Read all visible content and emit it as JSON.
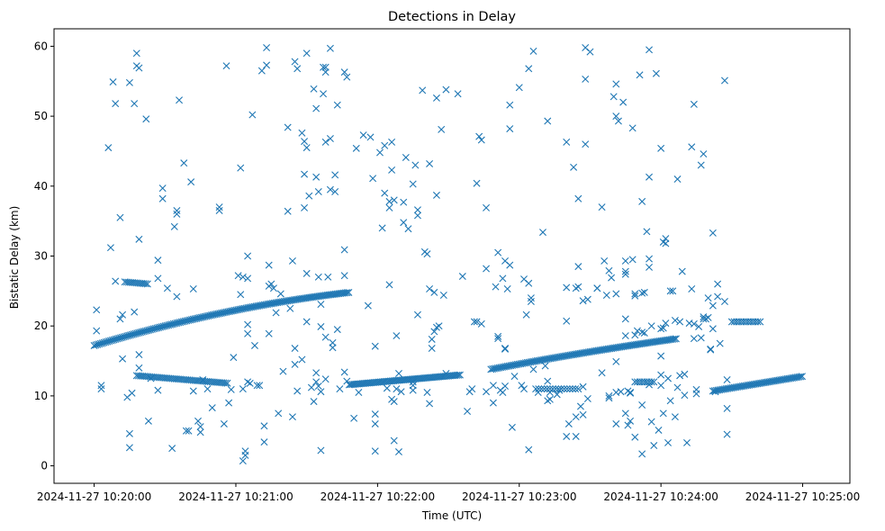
{
  "chart_data": {
    "type": "scatter",
    "title": "Detections in Delay",
    "xlabel": "Time (UTC)",
    "ylabel": "Bistatic Delay (km)",
    "marker": "x",
    "color": "#1f77b4",
    "grid": false,
    "xlim_seconds": [
      -17,
      320
    ],
    "ylim": [
      -2.5,
      62.5
    ],
    "x_ticks": [
      {
        "t": 0,
        "label": "2024-11-27 10:20:00"
      },
      {
        "t": 60,
        "label": "2024-11-27 10:21:00"
      },
      {
        "t": 120,
        "label": "2024-11-27 10:22:00"
      },
      {
        "t": 180,
        "label": "2024-11-27 10:23:00"
      },
      {
        "t": 240,
        "label": "2024-11-27 10:24:00"
      },
      {
        "t": 300,
        "label": "2024-11-27 10:25:00"
      }
    ],
    "y_ticks": [
      0,
      10,
      20,
      30,
      40,
      50,
      60
    ],
    "tracks": [
      {
        "name": "rising-track-1",
        "t_start": 0,
        "t_end": 108,
        "y_start": 17.2,
        "y_end": 24.8,
        "step": 0.7,
        "curvature": 0.45
      },
      {
        "name": "flat-track-1",
        "t_start": 108,
        "t_end": 155,
        "y_start": 11.6,
        "y_end": 13.0,
        "step": 0.7,
        "curvature": 0
      },
      {
        "name": "rising-track-2",
        "t_start": 168,
        "t_end": 247,
        "y_start": 13.8,
        "y_end": 18.2,
        "step": 0.7,
        "curvature": 0.15
      },
      {
        "name": "rising-track-3",
        "t_start": 262,
        "t_end": 300,
        "y_start": 10.7,
        "y_end": 12.8,
        "step": 0.7,
        "curvature": 0
      },
      {
        "name": "short-track-a",
        "t_start": 18,
        "t_end": 57,
        "y_start": 12.9,
        "y_end": 11.8,
        "step": 0.8,
        "curvature": 0
      },
      {
        "name": "short-track-b",
        "t_start": 13,
        "t_end": 23,
        "y_start": 26.3,
        "y_end": 26.0,
        "step": 0.8,
        "curvature": 0
      },
      {
        "name": "short-track-c",
        "t_start": 187,
        "t_end": 206,
        "y_start": 11.0,
        "y_end": 11.0,
        "step": 1.2,
        "curvature": 0
      },
      {
        "name": "short-track-d",
        "t_start": 229,
        "t_end": 237,
        "y_start": 12.0,
        "y_end": 12.0,
        "step": 1.0,
        "curvature": 0
      },
      {
        "name": "short-track-e",
        "t_start": 270,
        "t_end": 282,
        "y_start": 20.6,
        "y_end": 20.6,
        "step": 1.0,
        "curvature": 0
      }
    ],
    "points": [
      [
        1,
        22.3
      ],
      [
        1,
        19.3
      ],
      [
        3,
        11.5
      ],
      [
        3,
        11.0
      ],
      [
        6,
        45.5
      ],
      [
        7,
        31.2
      ],
      [
        8,
        54.9
      ],
      [
        9,
        51.8
      ],
      [
        9,
        26.4
      ],
      [
        11,
        21.0
      ],
      [
        11,
        35.5
      ],
      [
        12,
        21.6
      ],
      [
        12,
        15.3
      ],
      [
        14,
        9.8
      ],
      [
        15,
        54.8
      ],
      [
        15,
        2.6
      ],
      [
        15,
        4.6
      ],
      [
        16,
        10.4
      ],
      [
        17,
        51.8
      ],
      [
        17,
        22.0
      ],
      [
        18,
        59.0
      ],
      [
        18,
        57.2
      ],
      [
        19,
        56.9
      ],
      [
        19,
        32.4
      ],
      [
        19,
        14.0
      ],
      [
        19,
        15.9
      ],
      [
        22,
        49.6
      ],
      [
        23,
        6.4
      ],
      [
        24,
        12.5
      ],
      [
        27,
        29.4
      ],
      [
        27,
        26.8
      ],
      [
        27,
        10.8
      ],
      [
        29,
        39.7
      ],
      [
        29,
        38.2
      ],
      [
        31,
        25.4
      ],
      [
        33,
        2.5
      ],
      [
        34,
        34.2
      ],
      [
        35,
        24.2
      ],
      [
        35,
        36.5
      ],
      [
        35,
        36.0
      ],
      [
        36,
        52.3
      ],
      [
        38,
        43.3
      ],
      [
        39,
        5.0
      ],
      [
        40,
        5.0
      ],
      [
        41,
        40.6
      ],
      [
        42,
        25.3
      ],
      [
        42,
        10.7
      ],
      [
        44,
        6.4
      ],
      [
        45,
        4.8
      ],
      [
        45,
        5.6
      ],
      [
        46,
        12.3
      ],
      [
        48,
        11.0
      ],
      [
        50,
        8.3
      ],
      [
        53,
        37.0
      ],
      [
        53,
        36.5
      ],
      [
        55,
        6.0
      ],
      [
        56,
        57.2
      ],
      [
        57,
        9.0
      ],
      [
        58,
        10.9
      ],
      [
        59,
        15.5
      ],
      [
        61,
        27.2
      ],
      [
        62,
        42.6
      ],
      [
        62,
        24.5
      ],
      [
        63,
        27.0
      ],
      [
        63,
        11.0
      ],
      [
        63,
        0.7
      ],
      [
        64,
        1.5
      ],
      [
        64,
        2.1
      ],
      [
        65,
        20.2
      ],
      [
        65,
        30.0
      ],
      [
        65,
        26.8
      ],
      [
        65,
        18.9
      ],
      [
        65,
        12.0
      ],
      [
        66,
        11.8
      ],
      [
        67,
        50.2
      ],
      [
        68,
        17.2
      ],
      [
        69,
        11.5
      ],
      [
        70,
        11.5
      ],
      [
        71,
        56.5
      ],
      [
        72,
        5.7
      ],
      [
        72,
        3.4
      ],
      [
        73,
        59.8
      ],
      [
        73,
        57.3
      ],
      [
        74,
        25.7
      ],
      [
        74,
        18.9
      ],
      [
        74,
        28.7
      ],
      [
        75,
        26.0
      ],
      [
        76,
        25.4
      ],
      [
        77,
        21.9
      ],
      [
        78,
        7.5
      ],
      [
        79,
        24.6
      ],
      [
        80,
        13.5
      ],
      [
        82,
        48.4
      ],
      [
        82,
        36.4
      ],
      [
        83,
        22.5
      ],
      [
        84,
        7.0
      ],
      [
        84,
        29.3
      ],
      [
        85,
        16.8
      ],
      [
        85,
        14.5
      ],
      [
        85,
        57.8
      ],
      [
        86,
        56.8
      ],
      [
        86,
        10.7
      ],
      [
        88,
        47.6
      ],
      [
        88,
        15.2
      ],
      [
        89,
        46.4
      ],
      [
        89,
        41.7
      ],
      [
        89,
        36.9
      ],
      [
        90,
        59.0
      ],
      [
        90,
        45.5
      ],
      [
        90,
        27.5
      ],
      [
        90,
        20.6
      ],
      [
        91,
        38.6
      ],
      [
        92,
        11.2
      ],
      [
        93,
        53.9
      ],
      [
        93,
        9.2
      ],
      [
        94,
        41.3
      ],
      [
        94,
        51.1
      ],
      [
        94,
        13.3
      ],
      [
        94,
        12.0
      ],
      [
        95,
        11.4
      ],
      [
        95,
        39.2
      ],
      [
        95,
        27.0
      ],
      [
        96,
        23.1
      ],
      [
        96,
        19.9
      ],
      [
        96,
        2.2
      ],
      [
        96,
        10.6
      ],
      [
        97,
        57.0
      ],
      [
        97,
        53.2
      ],
      [
        98,
        56.3
      ],
      [
        98,
        12.4
      ],
      [
        98,
        57.0
      ],
      [
        98,
        46.3
      ],
      [
        98,
        18.4
      ],
      [
        99,
        27.0
      ],
      [
        100,
        59.7
      ],
      [
        100,
        46.8
      ],
      [
        100,
        39.5
      ],
      [
        101,
        16.9
      ],
      [
        101,
        17.6
      ],
      [
        102,
        39.2
      ],
      [
        102,
        41.6
      ],
      [
        103,
        51.6
      ],
      [
        103,
        19.5
      ],
      [
        104,
        11.0
      ],
      [
        106,
        30.9
      ],
      [
        106,
        27.2
      ],
      [
        106,
        56.3
      ],
      [
        106,
        13.4
      ],
      [
        107,
        55.6
      ],
      [
        107,
        12.1
      ],
      [
        110,
        6.8
      ],
      [
        111,
        45.4
      ],
      [
        112,
        10.5
      ],
      [
        114,
        47.3
      ],
      [
        116,
        22.9
      ],
      [
        117,
        47.0
      ],
      [
        118,
        41.1
      ],
      [
        119,
        17.1
      ],
      [
        119,
        7.4
      ],
      [
        119,
        6.0
      ],
      [
        119,
        2.1
      ],
      [
        121,
        44.8
      ],
      [
        122,
        34.0
      ],
      [
        123,
        45.8
      ],
      [
        123,
        39.0
      ],
      [
        124,
        11.1
      ],
      [
        125,
        25.9
      ],
      [
        125,
        37.8
      ],
      [
        125,
        36.9
      ],
      [
        126,
        42.3
      ],
      [
        126,
        46.3
      ],
      [
        126,
        9.5
      ],
      [
        127,
        9.2
      ],
      [
        127,
        38.0
      ],
      [
        127,
        3.6
      ],
      [
        128,
        18.6
      ],
      [
        128,
        11.0
      ],
      [
        129,
        13.2
      ],
      [
        129,
        2.0
      ],
      [
        130,
        10.6
      ],
      [
        131,
        37.7
      ],
      [
        131,
        34.8
      ],
      [
        132,
        44.1
      ],
      [
        133,
        33.9
      ],
      [
        135,
        40.3
      ],
      [
        135,
        11.5
      ],
      [
        135,
        10.8
      ],
      [
        135,
        12.0
      ],
      [
        136,
        43.0
      ],
      [
        137,
        21.6
      ],
      [
        137,
        36.6
      ],
      [
        137,
        35.8
      ],
      [
        139,
        53.7
      ],
      [
        140,
        30.6
      ],
      [
        141,
        30.3
      ],
      [
        141,
        10.5
      ],
      [
        142,
        25.3
      ],
      [
        142,
        43.2
      ],
      [
        142,
        8.9
      ],
      [
        143,
        18.1
      ],
      [
        143,
        16.8
      ],
      [
        144,
        24.8
      ],
      [
        144,
        19.2
      ],
      [
        145,
        38.7
      ],
      [
        145,
        52.6
      ],
      [
        145,
        19.8
      ],
      [
        146,
        20.0
      ],
      [
        147,
        48.1
      ],
      [
        148,
        24.4
      ],
      [
        149,
        53.8
      ],
      [
        149,
        13.2
      ],
      [
        154,
        53.2
      ],
      [
        156,
        27.1
      ],
      [
        158,
        7.8
      ],
      [
        159,
        10.6
      ],
      [
        160,
        11.0
      ],
      [
        161,
        20.6
      ],
      [
        162,
        40.4
      ],
      [
        162,
        20.6
      ],
      [
        163,
        47.1
      ],
      [
        164,
        46.6
      ],
      [
        164,
        20.3
      ],
      [
        166,
        36.9
      ],
      [
        166,
        28.2
      ],
      [
        166,
        10.6
      ],
      [
        169,
        11.5
      ],
      [
        169,
        9.0
      ],
      [
        170,
        25.6
      ],
      [
        171,
        18.5
      ],
      [
        171,
        30.5
      ],
      [
        171,
        18.2
      ],
      [
        172,
        10.8
      ],
      [
        173,
        26.8
      ],
      [
        173,
        10.5
      ],
      [
        174,
        16.8
      ],
      [
        174,
        29.3
      ],
      [
        174,
        11.4
      ],
      [
        174,
        16.7
      ],
      [
        175,
        25.3
      ],
      [
        176,
        48.2
      ],
      [
        176,
        51.6
      ],
      [
        176,
        28.7
      ],
      [
        177,
        5.5
      ],
      [
        178,
        12.8
      ],
      [
        180,
        54.1
      ],
      [
        181,
        11.5
      ],
      [
        182,
        26.7
      ],
      [
        182,
        11.0
      ],
      [
        183,
        21.6
      ],
      [
        184,
        26.1
      ],
      [
        184,
        56.8
      ],
      [
        184,
        2.3
      ],
      [
        185,
        24.0
      ],
      [
        185,
        23.5
      ],
      [
        186,
        59.3
      ],
      [
        186,
        13.8
      ],
      [
        188,
        10.5
      ],
      [
        190,
        33.4
      ],
      [
        191,
        14.3
      ],
      [
        192,
        49.3
      ],
      [
        192,
        12.1
      ],
      [
        192,
        9.3
      ],
      [
        193,
        9.5
      ],
      [
        193,
        10.5
      ],
      [
        196,
        10.2
      ],
      [
        197,
        10.8
      ],
      [
        200,
        46.3
      ],
      [
        200,
        20.7
      ],
      [
        200,
        25.5
      ],
      [
        200,
        4.2
      ],
      [
        201,
        6.0
      ],
      [
        203,
        42.7
      ],
      [
        204,
        25.4
      ],
      [
        204,
        4.2
      ],
      [
        204,
        7.0
      ],
      [
        205,
        38.2
      ],
      [
        205,
        25.6
      ],
      [
        205,
        28.5
      ],
      [
        206,
        8.5
      ],
      [
        207,
        11.3
      ],
      [
        207,
        7.3
      ],
      [
        207,
        23.6
      ],
      [
        208,
        59.8
      ],
      [
        208,
        55.3
      ],
      [
        208,
        46.0
      ],
      [
        209,
        23.8
      ],
      [
        209,
        9.6
      ],
      [
        210,
        59.2
      ],
      [
        213,
        25.4
      ],
      [
        213,
        25.4
      ],
      [
        215,
        37.0
      ],
      [
        215,
        13.3
      ],
      [
        216,
        29.3
      ],
      [
        217,
        24.4
      ],
      [
        218,
        27.9
      ],
      [
        218,
        10.0
      ],
      [
        218,
        9.7
      ],
      [
        219,
        26.9
      ],
      [
        220,
        52.8
      ],
      [
        221,
        54.6
      ],
      [
        221,
        50.0
      ],
      [
        221,
        24.6
      ],
      [
        221,
        14.9
      ],
      [
        221,
        6.0
      ],
      [
        221,
        10.5
      ],
      [
        222,
        49.3
      ],
      [
        223,
        10.6
      ],
      [
        224,
        52.0
      ],
      [
        225,
        27.8
      ],
      [
        225,
        27.4
      ],
      [
        225,
        21.0
      ],
      [
        225,
        18.6
      ],
      [
        225,
        29.3
      ],
      [
        225,
        7.5
      ],
      [
        226,
        5.8
      ],
      [
        226,
        10.7
      ],
      [
        227,
        6.4
      ],
      [
        227,
        10.5
      ],
      [
        227,
        10.4
      ],
      [
        228,
        48.3
      ],
      [
        228,
        29.5
      ],
      [
        229,
        4.1
      ],
      [
        229,
        24.6
      ],
      [
        229,
        24.3
      ],
      [
        229,
        18.7
      ],
      [
        230,
        19.3
      ],
      [
        231,
        55.9
      ],
      [
        232,
        8.7
      ],
      [
        232,
        24.7
      ],
      [
        232,
        19.1
      ],
      [
        232,
        37.8
      ],
      [
        232,
        1.7
      ],
      [
        233,
        19.0
      ],
      [
        233,
        24.8
      ],
      [
        234,
        33.5
      ],
      [
        235,
        59.5
      ],
      [
        235,
        11.6
      ],
      [
        235,
        29.6
      ],
      [
        235,
        28.4
      ],
      [
        235,
        41.3
      ],
      [
        236,
        20.0
      ],
      [
        236,
        6.3
      ],
      [
        237,
        2.9
      ],
      [
        238,
        56.1
      ],
      [
        239,
        5.1
      ],
      [
        240,
        45.4
      ],
      [
        240,
        15.7
      ],
      [
        240,
        11.5
      ],
      [
        240,
        19.6
      ],
      [
        240,
        13.0
      ],
      [
        241,
        19.7
      ],
      [
        241,
        7.5
      ],
      [
        241,
        32.0
      ],
      [
        242,
        20.4
      ],
      [
        242,
        31.8
      ],
      [
        242,
        32.5
      ],
      [
        243,
        12.5
      ],
      [
        243,
        3.3
      ],
      [
        244,
        9.3
      ],
      [
        244,
        25.0
      ],
      [
        245,
        25.0
      ],
      [
        246,
        20.8
      ],
      [
        246,
        7.0
      ],
      [
        247,
        11.2
      ],
      [
        247,
        41.0
      ],
      [
        248,
        20.6
      ],
      [
        248,
        12.9
      ],
      [
        249,
        27.8
      ],
      [
        250,
        10.1
      ],
      [
        250,
        13.1
      ],
      [
        251,
        3.3
      ],
      [
        252,
        20.4
      ],
      [
        253,
        45.6
      ],
      [
        253,
        25.3
      ],
      [
        254,
        51.7
      ],
      [
        254,
        20.3
      ],
      [
        254,
        18.2
      ],
      [
        255,
        10.3
      ],
      [
        255,
        10.9
      ],
      [
        256,
        19.9
      ],
      [
        257,
        43.0
      ],
      [
        257,
        18.3
      ],
      [
        258,
        44.6
      ],
      [
        258,
        21.0
      ],
      [
        258,
        21.3
      ],
      [
        259,
        21.0
      ],
      [
        260,
        24.0
      ],
      [
        260,
        21.2
      ],
      [
        261,
        16.7
      ],
      [
        261,
        16.6
      ],
      [
        262,
        19.6
      ],
      [
        262,
        33.3
      ],
      [
        262,
        22.9
      ],
      [
        263,
        10.6
      ],
      [
        264,
        26.0
      ],
      [
        264,
        24.2
      ],
      [
        265,
        17.5
      ],
      [
        267,
        23.5
      ],
      [
        267,
        55.1
      ],
      [
        268,
        12.3
      ],
      [
        268,
        8.2
      ],
      [
        268,
        4.5
      ]
    ]
  }
}
